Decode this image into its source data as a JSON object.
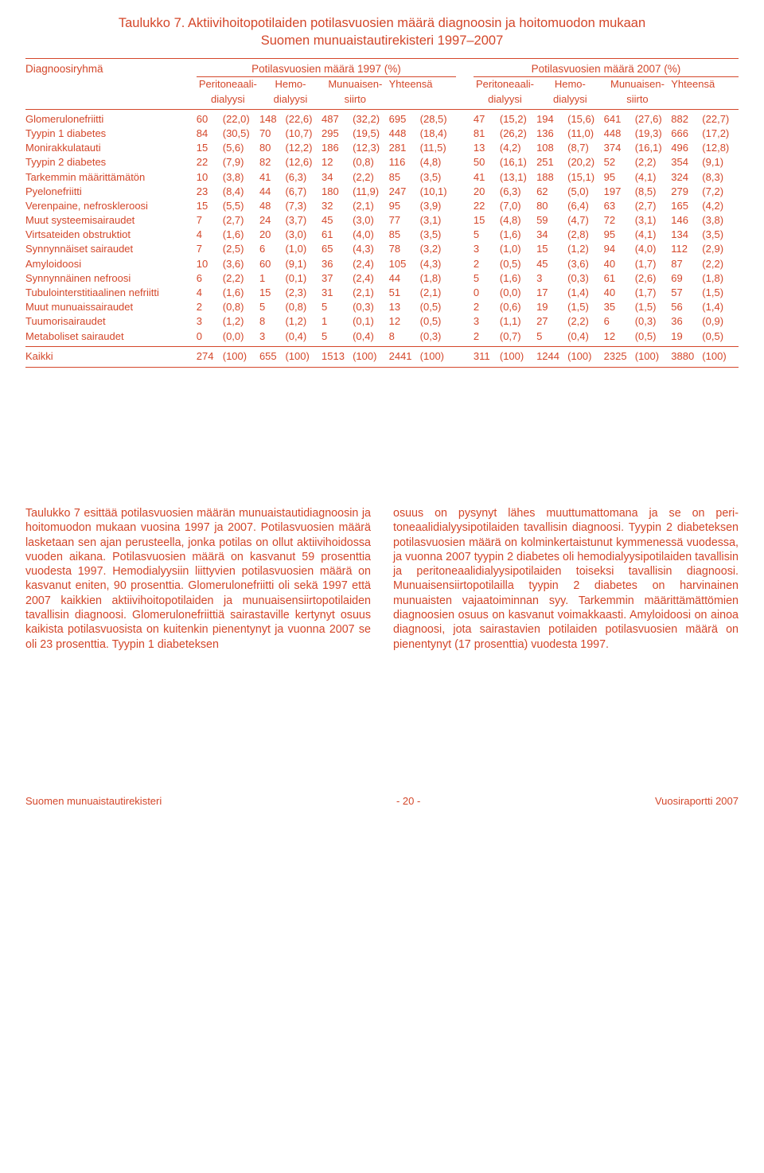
{
  "colors": {
    "ink": "#d4472a",
    "bg": "#ffffff"
  },
  "title": {
    "line1": "Taulukko 7. Aktiivihoitopotilaiden potilasvuosien määrä diagnoosin ja hoitomuodon mukaan",
    "line2": "Suomen munuaistautirekisteri 1997–2007"
  },
  "headers": {
    "dx": "Diagnoosiryhmä",
    "group1997": "Potilasvuosien määrä 1997 (%)",
    "group2007": "Potilasvuosien määrä 2007 (%)",
    "pd_l1": "Peritoneaali-",
    "pd_l2": "dialyysi",
    "hd_l1": "Hemo-",
    "hd_l2": "dialyysi",
    "tx_l1": "Munuaisen-",
    "tx_l2": "siirto",
    "tot": "Yhteensä"
  },
  "rows": [
    {
      "dx": "Glomerulonefriitti",
      "a": [
        "60",
        "(22,0)",
        "148",
        "(22,6)",
        "487",
        "(32,2)",
        "695",
        "(28,5)"
      ],
      "b": [
        "47",
        "(15,2)",
        "194",
        "(15,6)",
        "641",
        "(27,6)",
        "882",
        "(22,7)"
      ]
    },
    {
      "dx": "Tyypin 1 diabetes",
      "a": [
        "84",
        "(30,5)",
        "70",
        "(10,7)",
        "295",
        "(19,5)",
        "448",
        "(18,4)"
      ],
      "b": [
        "81",
        "(26,2)",
        "136",
        "(11,0)",
        "448",
        "(19,3)",
        "666",
        "(17,2)"
      ]
    },
    {
      "dx": "Monirakkulatauti",
      "a": [
        "15",
        "(5,6)",
        "80",
        "(12,2)",
        "186",
        "(12,3)",
        "281",
        "(11,5)"
      ],
      "b": [
        "13",
        "(4,2)",
        "108",
        "(8,7)",
        "374",
        "(16,1)",
        "496",
        "(12,8)"
      ]
    },
    {
      "dx": "Tyypin 2 diabetes",
      "a": [
        "22",
        "(7,9)",
        "82",
        "(12,6)",
        "12",
        "(0,8)",
        "116",
        "(4,8)"
      ],
      "b": [
        "50",
        "(16,1)",
        "251",
        "(20,2)",
        "52",
        "(2,2)",
        "354",
        "(9,1)"
      ]
    },
    {
      "dx": "Tarkemmin määrittämätön",
      "a": [
        "10",
        "(3,8)",
        "41",
        "(6,3)",
        "34",
        "(2,2)",
        "85",
        "(3,5)"
      ],
      "b": [
        "41",
        "(13,1)",
        "188",
        "(15,1)",
        "95",
        "(4,1)",
        "324",
        "(8,3)"
      ]
    },
    {
      "dx": "Pyelonefriitti",
      "a": [
        "23",
        "(8,4)",
        "44",
        "(6,7)",
        "180",
        "(11,9)",
        "247",
        "(10,1)"
      ],
      "b": [
        "20",
        "(6,3)",
        "62",
        "(5,0)",
        "197",
        "(8,5)",
        "279",
        "(7,2)"
      ]
    },
    {
      "dx": "Verenpaine, nefroskleroosi",
      "a": [
        "15",
        "(5,5)",
        "48",
        "(7,3)",
        "32",
        "(2,1)",
        "95",
        "(3,9)"
      ],
      "b": [
        "22",
        "(7,0)",
        "80",
        "(6,4)",
        "63",
        "(2,7)",
        "165",
        "(4,2)"
      ]
    },
    {
      "dx": "Muut systeemisairaudet",
      "a": [
        "7",
        "(2,7)",
        "24",
        "(3,7)",
        "45",
        "(3,0)",
        "77",
        "(3,1)"
      ],
      "b": [
        "15",
        "(4,8)",
        "59",
        "(4,7)",
        "72",
        "(3,1)",
        "146",
        "(3,8)"
      ]
    },
    {
      "dx": "Virtsateiden obstruktiot",
      "a": [
        "4",
        "(1,6)",
        "20",
        "(3,0)",
        "61",
        "(4,0)",
        "85",
        "(3,5)"
      ],
      "b": [
        "5",
        "(1,6)",
        "34",
        "(2,8)",
        "95",
        "(4,1)",
        "134",
        "(3,5)"
      ]
    },
    {
      "dx": "Synnynnäiset sairaudet",
      "a": [
        "7",
        "(2,5)",
        "6",
        "(1,0)",
        "65",
        "(4,3)",
        "78",
        "(3,2)"
      ],
      "b": [
        "3",
        "(1,0)",
        "15",
        "(1,2)",
        "94",
        "(4,0)",
        "112",
        "(2,9)"
      ]
    },
    {
      "dx": "Amyloidoosi",
      "a": [
        "10",
        "(3,6)",
        "60",
        "(9,1)",
        "36",
        "(2,4)",
        "105",
        "(4,3)"
      ],
      "b": [
        "2",
        "(0,5)",
        "45",
        "(3,6)",
        "40",
        "(1,7)",
        "87",
        "(2,2)"
      ]
    },
    {
      "dx": "Synnynnäinen nefroosi",
      "a": [
        "6",
        "(2,2)",
        "1",
        "(0,1)",
        "37",
        "(2,4)",
        "44",
        "(1,8)"
      ],
      "b": [
        "5",
        "(1,6)",
        "3",
        "(0,3)",
        "61",
        "(2,6)",
        "69",
        "(1,8)"
      ]
    },
    {
      "dx": "Tubulointerstitiaalinen nefriitti",
      "a": [
        "4",
        "(1,6)",
        "15",
        "(2,3)",
        "31",
        "(2,1)",
        "51",
        "(2,1)"
      ],
      "b": [
        "0",
        "(0,0)",
        "17",
        "(1,4)",
        "40",
        "(1,7)",
        "57",
        "(1,5)"
      ]
    },
    {
      "dx": "Muut munuaissairaudet",
      "a": [
        "2",
        "(0,8)",
        "5",
        "(0,8)",
        "5",
        "(0,3)",
        "13",
        "(0,5)"
      ],
      "b": [
        "2",
        "(0,6)",
        "19",
        "(1,5)",
        "35",
        "(1,5)",
        "56",
        "(1,4)"
      ]
    },
    {
      "dx": "Tuumorisairaudet",
      "a": [
        "3",
        "(1,2)",
        "8",
        "(1,2)",
        "1",
        "(0,1)",
        "12",
        "(0,5)"
      ],
      "b": [
        "3",
        "(1,1)",
        "27",
        "(2,2)",
        "6",
        "(0,3)",
        "36",
        "(0,9)"
      ]
    },
    {
      "dx": "Metaboliset sairaudet",
      "a": [
        "0",
        "(0,0)",
        "3",
        "(0,4)",
        "5",
        "(0,4)",
        "8",
        "(0,3)"
      ],
      "b": [
        "2",
        "(0,7)",
        "5",
        "(0,4)",
        "12",
        "(0,5)",
        "19",
        "(0,5)"
      ]
    }
  ],
  "total": {
    "dx": "Kaikki",
    "a": [
      "274",
      "(100)",
      "655",
      "(100)",
      "1513",
      "(100)",
      "2441",
      "(100)"
    ],
    "b": [
      "311",
      "(100)",
      "1244",
      "(100)",
      "2325",
      "(100)",
      "3880",
      "(100)"
    ]
  },
  "article": {
    "left": "Taulukko 7 esittää potilasvuosien määrän munuaistauti­diagnoosin ja hoitomuodon mukaan vuosina 1997 ja 2007. Potilasvuosien määrä lasketaan sen ajan perusteella, jonka potilas on ollut aktiivihoidossa vuoden aikana. Potilasvuosien määrä on kasvanut 59 prosenttia vuodesta 1997. Hemo­dialyysiin liittyvien potilasvuosien määrä on kasvanut eniten, 90 prosenttia. Glomerulonefriitti oli sekä 1997 että 2007 kaikkien aktiivihoitopotilaiden ja munuaisensiirtopotilaiden tavallisin diagnoosi. Glomerulonefriittiä sairastaville kertynyt osuus kaikista potilasvuosista on kuitenkin pienentynyt ja vuonna 2007 se oli 23 prosenttia. Tyypin 1 diabeteksen",
    "right": "osuus on pysynyt lähes muuttumattomana ja se on peri­toneaalidialyysipotilaiden tavallisin diagnoosi. Tyypin 2 diabeteksen potilasvuosien määrä on kolminkertaistunut kymmenessä vuodessa, ja vuonna 2007 tyypin 2 diabetes oli hemodialyysipotilaiden tavallisin ja peritoneaalidialyysi­potilaiden toiseksi tavallisin diagnoosi. Munuaisensiirto­potilailla tyypin 2 diabetes on harvinainen munuaisten vajaatoiminnan syy. Tarkemmin määrittämättömien diag­noosien osuus on kasvanut voimakkaasti. Amyloidoosi on ainoa diagnoosi, jota sairastavien potilaiden potilasvuosien määrä on pienentynyt (17 prosenttia) vuodesta 1997."
  },
  "footer": {
    "left": "Suomen munuaistautirekisteri",
    "center": "- 20 -",
    "right": "Vuosiraportti 2007"
  }
}
